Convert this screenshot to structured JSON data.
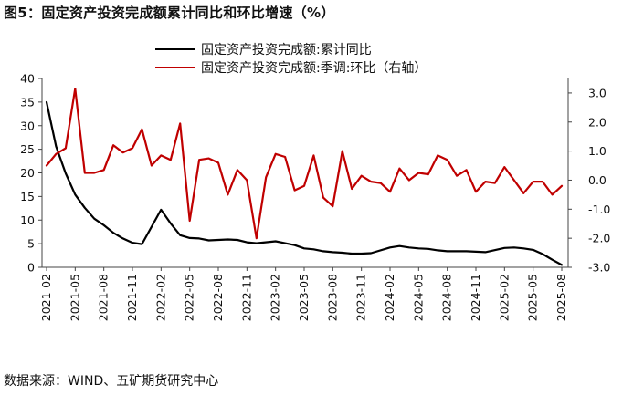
{
  "header": {
    "title": "图5：固定资产投资完成额累计同比和环比增速（%）"
  },
  "footer": {
    "source": "数据来源：WIND、五矿期货研究中心"
  },
  "chart_data": {
    "type": "line",
    "title": "图5：固定资产投资完成额累计同比和环比增速（%）",
    "legend_position": "top",
    "grid": false,
    "x": [
      "2021-02",
      "2021-03",
      "2021-04",
      "2021-05",
      "2021-06",
      "2021-07",
      "2021-08",
      "2021-09",
      "2021-10",
      "2021-11",
      "2021-12",
      "2022-01",
      "2022-02",
      "2022-03",
      "2022-04",
      "2022-05",
      "2022-06",
      "2022-07",
      "2022-08",
      "2022-09",
      "2022-10",
      "2022-11",
      "2022-12",
      "2023-01",
      "2023-02",
      "2023-03",
      "2023-04",
      "2023-05",
      "2023-06",
      "2023-07",
      "2023-08",
      "2023-09",
      "2023-10",
      "2023-11",
      "2023-12",
      "2024-01",
      "2024-02",
      "2024-03",
      "2024-04",
      "2024-05",
      "2024-06",
      "2024-07",
      "2024-08",
      "2024-09",
      "2024-10",
      "2024-11",
      "2024-12",
      "2025-01",
      "2025-02",
      "2025-03",
      "2025-04",
      "2025-05",
      "2025-06",
      "2025-07",
      "2025-08"
    ],
    "x_ticks": [
      "2021-02",
      "2021-05",
      "2021-08",
      "2021-11",
      "2022-02",
      "2022-05",
      "2022-08",
      "2022-11",
      "2023-02",
      "2023-05",
      "2023-08",
      "2023-11",
      "2024-02",
      "2024-05",
      "2024-08",
      "2024-11",
      "2025-02",
      "2025-05",
      "2025-08"
    ],
    "y_left": {
      "lim": [
        0,
        40
      ],
      "ticks": [
        "0",
        "5",
        "10",
        "15",
        "20",
        "25",
        "30",
        "35",
        "40"
      ]
    },
    "y_right": {
      "lim": [
        -3,
        3.5
      ],
      "ticks": [
        "-3.0",
        "-2.0",
        "-1.0",
        "0.0",
        "1.0",
        "2.0",
        "3.0"
      ]
    },
    "series": [
      {
        "name": "固定资产投资完成额:累计同比",
        "axis": "left",
        "color": "#000000",
        "values": [
          35.0,
          25.6,
          19.9,
          15.4,
          12.6,
          10.3,
          8.9,
          7.3,
          6.1,
          5.2,
          4.9,
          null,
          12.2,
          9.3,
          6.8,
          6.2,
          6.1,
          5.7,
          5.8,
          5.9,
          5.8,
          5.3,
          5.1,
          null,
          5.5,
          5.1,
          4.7,
          4.0,
          3.8,
          3.4,
          3.2,
          3.1,
          2.9,
          2.9,
          3.0,
          null,
          4.2,
          4.5,
          4.2,
          4.0,
          3.9,
          3.6,
          3.4,
          3.4,
          3.4,
          3.3,
          3.2,
          null,
          4.1,
          4.2,
          4.0,
          3.7,
          2.8,
          1.6,
          0.5
        ]
      },
      {
        "name": "固定资产投资完成额:季调:环比（右轴）",
        "axis": "right",
        "color": "#c00000",
        "values": [
          0.5,
          0.9,
          1.1,
          3.15,
          0.25,
          0.25,
          0.35,
          1.2,
          0.95,
          1.1,
          1.75,
          0.5,
          0.85,
          0.7,
          1.95,
          -1.4,
          0.7,
          0.75,
          0.6,
          -0.5,
          0.35,
          0.0,
          -2.0,
          0.1,
          0.9,
          0.8,
          -0.35,
          -0.2,
          0.85,
          -0.6,
          -0.9,
          1.0,
          -0.3,
          0.15,
          -0.05,
          -0.1,
          -0.4,
          0.4,
          0.0,
          0.25,
          0.2,
          0.85,
          0.7,
          0.15,
          0.35,
          -0.4,
          -0.05,
          -0.1,
          0.45,
          0.0,
          -0.45,
          -0.05,
          -0.05,
          -0.5,
          -0.2
        ]
      }
    ]
  }
}
